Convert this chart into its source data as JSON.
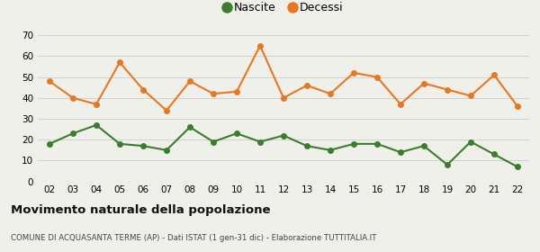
{
  "years": [
    "02",
    "03",
    "04",
    "05",
    "06",
    "07",
    "08",
    "09",
    "10",
    "11",
    "12",
    "13",
    "14",
    "15",
    "16",
    "17",
    "18",
    "19",
    "20",
    "21",
    "22"
  ],
  "nascite": [
    18,
    23,
    27,
    18,
    17,
    15,
    26,
    19,
    23,
    19,
    22,
    17,
    15,
    18,
    18,
    14,
    17,
    8,
    19,
    13,
    7
  ],
  "decessi": [
    48,
    40,
    37,
    57,
    44,
    34,
    48,
    42,
    43,
    65,
    40,
    46,
    42,
    52,
    50,
    37,
    47,
    44,
    41,
    51,
    36
  ],
  "nascite_color": "#3a7d2c",
  "decessi_color": "#e87820",
  "background_color": "#f0f0eb",
  "grid_color": "#cccccc",
  "ylim": [
    0,
    70
  ],
  "yticks": [
    0,
    10,
    20,
    30,
    40,
    50,
    60,
    70
  ],
  "title_main": "Movimento naturale della popolazione",
  "title_sub": "COMUNE DI ACQUASANTA TERME (AP) - Dati ISTAT (1 gen-31 dic) - Elaborazione TUTTITALIA.IT",
  "legend_nascite": "Nascite",
  "legend_decessi": "Decessi",
  "marker_size": 4,
  "line_width": 1.5
}
